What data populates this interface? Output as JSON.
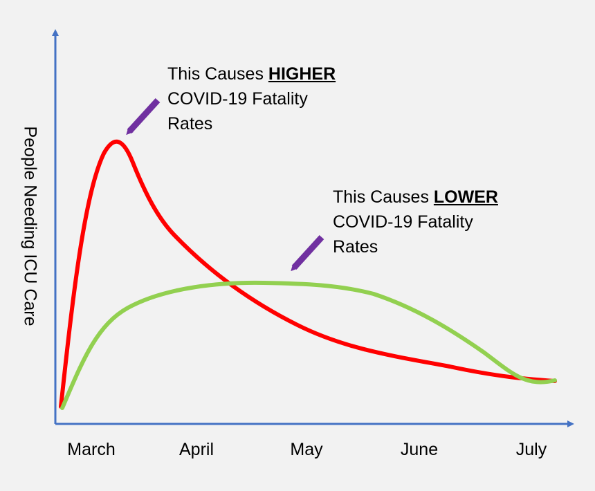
{
  "axes": {
    "y_label": "People Needing ICU Care",
    "x_ticks": [
      "March",
      "April",
      "May",
      "June",
      "July"
    ],
    "axis_color": "#4472c4"
  },
  "annotations": {
    "higher": {
      "prefix": "This Causes ",
      "emphasis": "HIGHER",
      "line2": "COVID-19 Fatality",
      "line3": "Rates"
    },
    "lower": {
      "prefix": "This Causes ",
      "emphasis": "LOWER",
      "line2": "COVID-19 Fatality",
      "line3": "Rates"
    },
    "arrow_color": "#7030a0"
  },
  "curves": {
    "spike_color": "#ff0000",
    "flat_color": "#92d050"
  }
}
